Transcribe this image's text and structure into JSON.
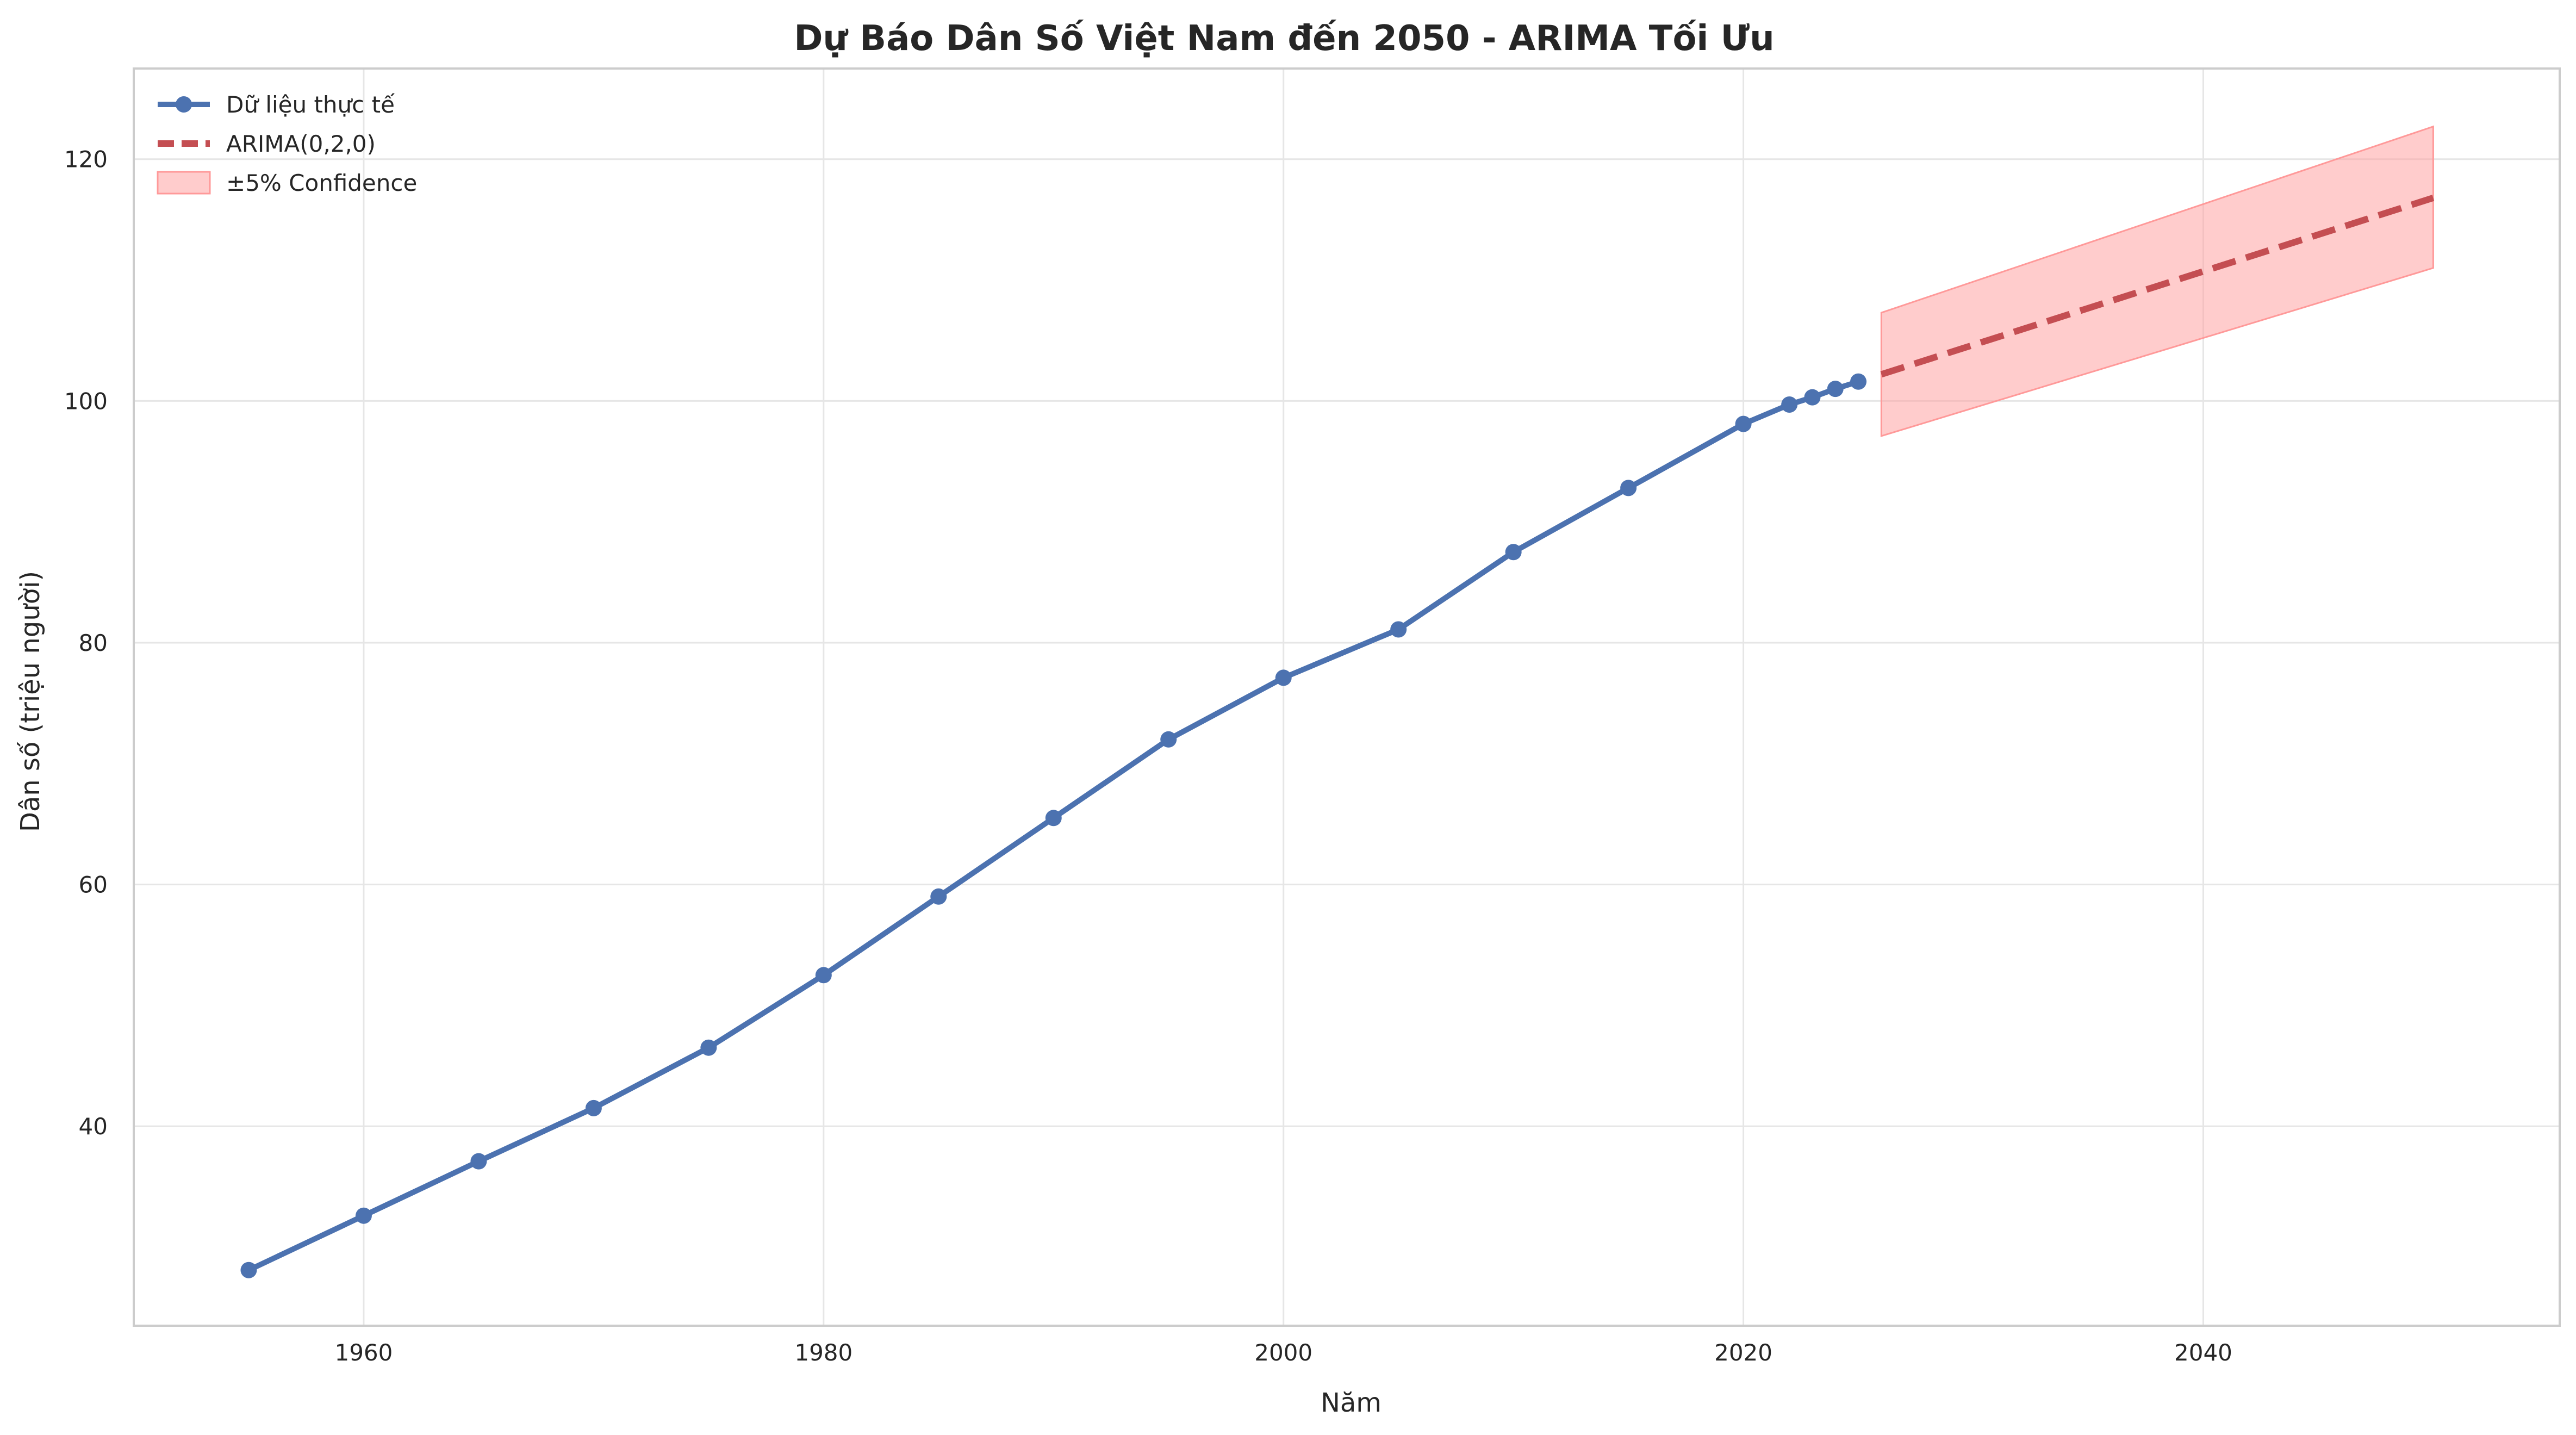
{
  "chart_data": {
    "type": "line",
    "title": "Dự Báo Dân Số Việt Nam đến 2050 - ARIMA Tối Ưu",
    "xlabel": "Năm",
    "ylabel": "Dân số (triệu người)",
    "xlim": [
      1950,
      2055.5
    ],
    "ylim": [
      23.5,
      127.5
    ],
    "xticks": [
      1960,
      1980,
      2000,
      2020,
      2040
    ],
    "yticks": [
      40,
      60,
      80,
      100,
      120
    ],
    "grid": true,
    "legend_position": "top-left",
    "legend": [
      "Dữ liệu thực tế",
      "ARIMA(0,2,0)",
      "±5% Confidence"
    ],
    "series": [
      {
        "name": "Dữ liệu thực tế",
        "style": "solid-markers",
        "color": "#4c72b0",
        "x": [
          1955,
          1960,
          1965,
          1970,
          1975,
          1980,
          1985,
          1990,
          1995,
          2000,
          2005,
          2010,
          2015,
          2020,
          2022,
          2023,
          2024,
          2025
        ],
        "y": [
          28.1,
          32.6,
          37.1,
          41.5,
          46.5,
          52.5,
          59.0,
          65.5,
          72.0,
          77.1,
          81.1,
          87.5,
          92.8,
          98.1,
          99.7,
          100.3,
          101.0,
          101.6
        ]
      },
      {
        "name": "ARIMA(0,2,0)",
        "style": "dashed",
        "color": "#c44e52",
        "x": [
          2026,
          2050
        ],
        "y": [
          102.2,
          116.8
        ]
      }
    ],
    "band": {
      "name": "±5% Confidence",
      "color": "#ff9999",
      "x": [
        2026,
        2050
      ],
      "lower": [
        97.1,
        111.0
      ],
      "upper": [
        107.3,
        122.7
      ]
    }
  }
}
